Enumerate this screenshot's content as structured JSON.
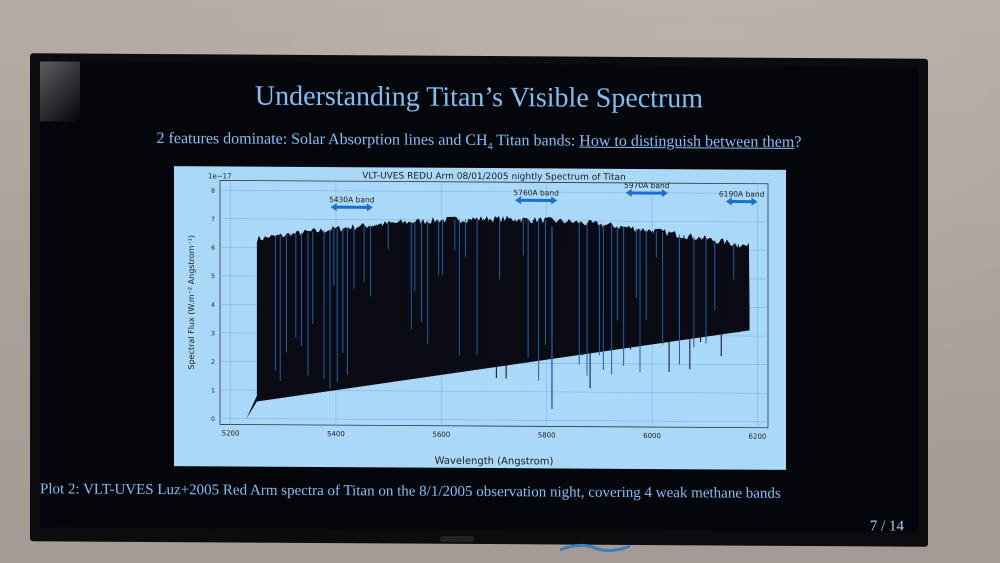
{
  "slide": {
    "title": "Understanding Titan’s Visible Spectrum",
    "subtitle_prefix": "2 features dominate: Solar Absorption lines and CH",
    "subtitle_sub": "4",
    "subtitle_middle": " Titan bands: ",
    "subtitle_link": "How to distinguish between them",
    "subtitle_suffix": "?",
    "caption": "Plot 2: VLT-UVES Luz+2005 Red Arm spectra of Titan on the 8/1/2005 observation night, covering 4 weak methane bands",
    "page": "7 / 14"
  },
  "plot": {
    "title": "VLT-UVES REDU Arm 08/01/2005 nightly Spectrum of Titan",
    "xlabel": "Wavelength (Angstrom)",
    "ylabel": "Spectral Flux (W.m⁻² Angstrom⁻¹)",
    "offset_label": "1e−17",
    "xticks": [
      "5200",
      "5400",
      "5600",
      "5800",
      "6000",
      "6200"
    ],
    "yticks": [
      "0",
      "1",
      "2",
      "3",
      "4",
      "5",
      "6",
      "7",
      "8"
    ],
    "bands": [
      "5430A band",
      "5760A band",
      "5970A band",
      "6190A band"
    ],
    "colors": {
      "background": "#a9d8f9",
      "spectrum": "#0b0b14",
      "lines": "#1f5fa8",
      "arrow": "#1b6fd0"
    }
  }
}
